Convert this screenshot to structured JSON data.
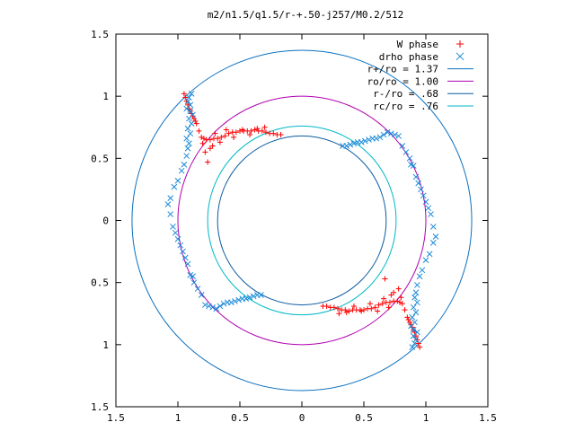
{
  "chart_data": {
    "type": "scatter",
    "title": "m2/n1.5/q1.5/r-+.50-j257/M0.2/512",
    "xlabel": "",
    "ylabel": "",
    "xlim": [
      -1.5,
      1.5
    ],
    "ylim": [
      -1.5,
      1.5
    ],
    "grid": false,
    "legend_position": "top-right",
    "x_ticks": [
      {
        "value": -1.5,
        "label": "1.5"
      },
      {
        "value": -1.0,
        "label": "1"
      },
      {
        "value": -0.5,
        "label": "0.5"
      },
      {
        "value": 0.0,
        "label": "0"
      },
      {
        "value": 0.5,
        "label": "0.5"
      },
      {
        "value": 1.0,
        "label": "1"
      },
      {
        "value": 1.5,
        "label": "1.5"
      }
    ],
    "y_ticks": [
      {
        "value": 1.5,
        "label": "1.5"
      },
      {
        "value": 1.0,
        "label": "1"
      },
      {
        "value": 0.5,
        "label": "0.5"
      },
      {
        "value": 0.0,
        "label": "0"
      },
      {
        "value": -0.5,
        "label": "0.5"
      },
      {
        "value": -1.0,
        "label": "1"
      },
      {
        "value": -1.5,
        "label": "1.5"
      }
    ],
    "circles": [
      {
        "name": "r+/ro = 1.37",
        "radius": 1.37,
        "color": "#0a70c0"
      },
      {
        "name": "ro/ro = 1.00",
        "radius": 1.0,
        "color": "#b000b0"
      },
      {
        "name": "r-/ro = .68",
        "radius": 0.68,
        "color": "#0a5aa0"
      },
      {
        "name": "rc/ro = .76",
        "radius": 0.76,
        "color": "#00b8c8"
      }
    ],
    "series": [
      {
        "name": "W phase",
        "marker": "plus",
        "color": "#ff0000",
        "x": [
          -0.95,
          -0.94,
          -0.93,
          -0.92,
          -0.91,
          -0.9,
          -0.89,
          -0.88,
          -0.87,
          -0.86,
          -0.85,
          -0.83,
          -0.81,
          -0.79,
          -0.77,
          -0.74,
          -0.71,
          -0.68,
          -0.65,
          -0.62,
          -0.59,
          -0.56,
          -0.53,
          -0.5,
          -0.47,
          -0.44,
          -0.41,
          -0.38,
          -0.35,
          -0.32,
          -0.29,
          -0.26,
          -0.23,
          -0.2,
          -0.17,
          -0.8,
          -0.78,
          -0.72,
          -0.7,
          -0.66,
          -0.74,
          -0.61,
          -0.55,
          -0.48,
          -0.42,
          -0.36,
          -0.3,
          -0.76,
          0.95,
          0.94,
          0.93,
          0.92,
          0.91,
          0.9,
          0.89,
          0.88,
          0.87,
          0.86,
          0.85,
          0.83,
          0.81,
          0.79,
          0.77,
          0.74,
          0.71,
          0.68,
          0.65,
          0.62,
          0.59,
          0.56,
          0.53,
          0.5,
          0.47,
          0.44,
          0.41,
          0.38,
          0.35,
          0.32,
          0.29,
          0.26,
          0.23,
          0.2,
          0.17,
          0.8,
          0.78,
          0.72,
          0.7,
          0.66,
          0.74,
          0.61,
          0.55,
          0.48,
          0.42,
          0.36,
          0.3,
          0.67
        ],
        "y": [
          1.02,
          0.99,
          0.96,
          0.93,
          0.9,
          0.88,
          0.86,
          0.84,
          0.82,
          0.8,
          0.78,
          0.72,
          0.67,
          0.66,
          0.65,
          0.65,
          0.66,
          0.66,
          0.67,
          0.68,
          0.7,
          0.71,
          0.71,
          0.72,
          0.72,
          0.72,
          0.72,
          0.73,
          0.72,
          0.72,
          0.71,
          0.7,
          0.7,
          0.69,
          0.69,
          0.62,
          0.55,
          0.6,
          0.7,
          0.63,
          0.58,
          0.73,
          0.67,
          0.73,
          0.69,
          0.74,
          0.75,
          0.47,
          -1.02,
          -0.99,
          -0.96,
          -0.93,
          -0.9,
          -0.88,
          -0.86,
          -0.84,
          -0.82,
          -0.8,
          -0.78,
          -0.72,
          -0.67,
          -0.66,
          -0.65,
          -0.65,
          -0.66,
          -0.66,
          -0.67,
          -0.68,
          -0.7,
          -0.71,
          -0.71,
          -0.72,
          -0.72,
          -0.72,
          -0.72,
          -0.73,
          -0.72,
          -0.72,
          -0.71,
          -0.7,
          -0.7,
          -0.69,
          -0.69,
          -0.62,
          -0.55,
          -0.6,
          -0.7,
          -0.63,
          -0.58,
          -0.73,
          -0.67,
          -0.73,
          -0.69,
          -0.74,
          -0.75,
          -0.47
        ]
      },
      {
        "name": "drho phase",
        "marker": "cross",
        "color": "#1a8ad8",
        "x": [
          0.33,
          0.36,
          0.39,
          0.42,
          0.45,
          0.48,
          0.51,
          0.54,
          0.57,
          0.6,
          0.63,
          0.66,
          0.69,
          0.72,
          0.75,
          0.78,
          0.81,
          0.84,
          0.87,
          0.88,
          0.9,
          0.92,
          0.94,
          0.96,
          0.98,
          1.0,
          1.02,
          1.04,
          1.06,
          1.08,
          1.06,
          1.03,
          1.0,
          0.97,
          0.95,
          0.93,
          0.92,
          0.91,
          0.93,
          0.9,
          0.92,
          0.89,
          0.91,
          0.88,
          0.9,
          0.93,
          0.9,
          0.92,
          0.91,
          0.89,
          -0.33,
          -0.36,
          -0.39,
          -0.42,
          -0.45,
          -0.48,
          -0.51,
          -0.54,
          -0.57,
          -0.6,
          -0.63,
          -0.66,
          -0.69,
          -0.72,
          -0.75,
          -0.78,
          -0.81,
          -0.84,
          -0.87,
          -0.88,
          -0.9,
          -0.92,
          -0.94,
          -0.96,
          -0.98,
          -1.0,
          -1.02,
          -1.04,
          -1.06,
          -1.08,
          -1.06,
          -1.03,
          -1.0,
          -0.97,
          -0.95,
          -0.93,
          -0.92,
          -0.91,
          -0.93,
          -0.9,
          -0.92,
          -0.89,
          -0.91,
          -0.88,
          -0.9,
          -0.93,
          -0.9,
          -0.92,
          -0.91,
          -0.89
        ],
        "y": [
          0.6,
          0.6,
          0.61,
          0.62,
          0.63,
          0.63,
          0.64,
          0.65,
          0.66,
          0.66,
          0.67,
          0.69,
          0.71,
          0.7,
          0.69,
          0.68,
          0.6,
          0.55,
          0.5,
          0.45,
          0.44,
          0.35,
          0.3,
          0.25,
          0.2,
          0.15,
          0.1,
          0.05,
          -0.05,
          -0.13,
          -0.18,
          -0.27,
          -0.32,
          -0.4,
          -0.45,
          -0.52,
          -0.58,
          -0.62,
          -0.66,
          -0.7,
          -0.74,
          -0.78,
          -0.82,
          -0.85,
          -0.88,
          -0.9,
          -0.93,
          -0.96,
          -0.99,
          -1.02,
          -0.6,
          -0.6,
          -0.61,
          -0.62,
          -0.63,
          -0.63,
          -0.64,
          -0.65,
          -0.66,
          -0.66,
          -0.67,
          -0.69,
          -0.71,
          -0.7,
          -0.69,
          -0.68,
          -0.6,
          -0.55,
          -0.5,
          -0.45,
          -0.44,
          -0.35,
          -0.3,
          -0.25,
          -0.2,
          -0.15,
          -0.1,
          -0.05,
          0.05,
          0.13,
          0.18,
          0.27,
          0.32,
          0.4,
          0.45,
          0.52,
          0.58,
          0.62,
          0.66,
          0.7,
          0.74,
          0.78,
          0.82,
          0.85,
          0.88,
          0.9,
          0.93,
          0.96,
          0.99,
          1.02
        ]
      }
    ]
  }
}
